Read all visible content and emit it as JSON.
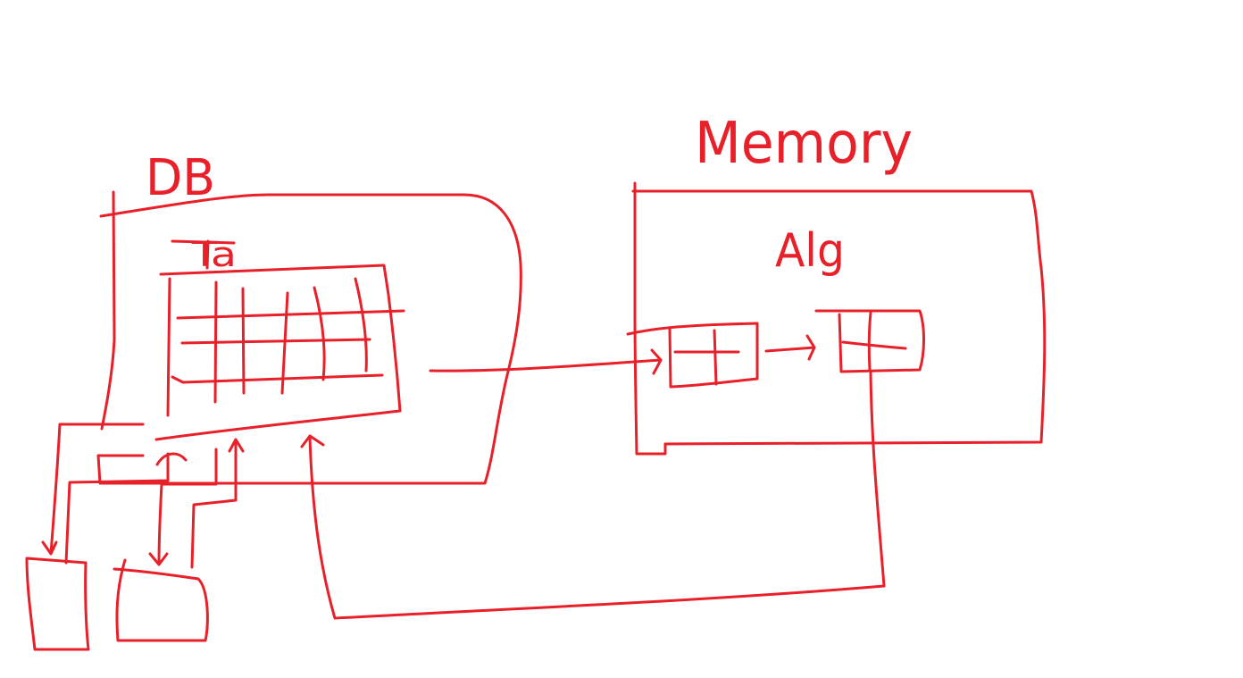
{
  "labels": {
    "db": "DB",
    "memory": "Memory",
    "table": "Ta",
    "alg": "Alg"
  },
  "colors": {
    "ink": "#e8202a",
    "background": "#ffffff"
  }
}
